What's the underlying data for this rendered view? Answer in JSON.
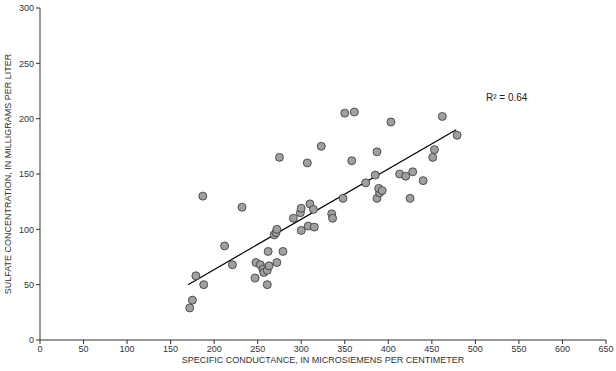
{
  "chart_data": {
    "type": "scatter",
    "x_label": "SPECIFIC CONDUCTANCE, IN MICROSIEMENS PER CENTIMETER",
    "y_label": "SULFATE CONCENTRATION, IN MILLIGRAMS PER LITER",
    "annotation": "R² = 0.64",
    "x": [
      172,
      175,
      179,
      188,
      187,
      212,
      221,
      232,
      247,
      248,
      253,
      256,
      257,
      261,
      261,
      262,
      263,
      269,
      271,
      272,
      272,
      275,
      279,
      291,
      299,
      300,
      300,
      307,
      308,
      310,
      314,
      315,
      323,
      335,
      336,
      348,
      350,
      358,
      361,
      374,
      385,
      387,
      387,
      390,
      389,
      393,
      403,
      413,
      420,
      425,
      428,
      440,
      451,
      453,
      462,
      479
    ],
    "values": [
      29,
      36,
      58,
      50,
      130,
      85,
      68,
      120,
      56,
      70,
      68,
      64,
      61,
      50,
      63,
      80,
      67,
      95,
      97,
      100,
      70,
      165,
      80,
      110,
      115,
      119,
      99,
      160,
      103,
      123,
      118,
      102,
      175,
      114,
      110,
      128,
      205,
      162,
      206,
      142,
      149,
      170,
      128,
      133,
      137,
      135,
      197,
      150,
      148,
      128,
      152,
      144,
      165,
      172,
      202,
      185
    ],
    "trend_line": {
      "x": [
        170,
        478
      ],
      "values": [
        50,
        190
      ]
    },
    "color": "#a0a0a0",
    "marker": "circle",
    "xlim": [
      0,
      650
    ],
    "xticks": [
      0,
      50,
      100,
      150,
      200,
      250,
      300,
      350,
      400,
      450,
      500,
      550,
      600,
      650
    ],
    "ylim": [
      0,
      300
    ],
    "yticks": [
      0,
      50,
      100,
      150,
      200,
      250,
      300
    ],
    "grid": false
  }
}
